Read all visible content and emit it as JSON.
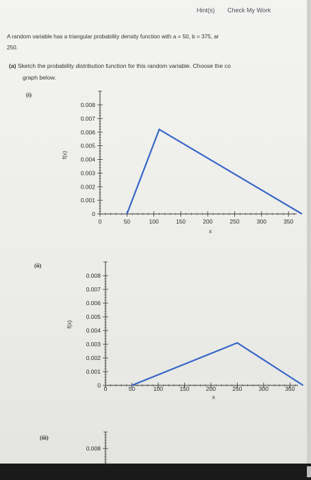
{
  "header": {
    "hint_label": "Hint(s)",
    "check_label": "Check My Work"
  },
  "problem": {
    "line1": "A random variable has a triangular probability density function with a = 50, b = 375, ar",
    "line2": "250."
  },
  "part_a": {
    "label": "(a)",
    "line1": "Sketch the probability distribution function for this random variable. Choose the co",
    "line2": "graph below."
  },
  "options": [
    {
      "label": "(i)"
    },
    {
      "label": "(ii)"
    },
    {
      "label": "(iii)"
    }
  ],
  "chart_data": [
    {
      "type": "line",
      "option": "(i)",
      "xlabel": "x",
      "ylabel": "f(x)",
      "xlim": [
        0,
        360
      ],
      "ylim": [
        0,
        0.008
      ],
      "x_ticks": [
        "0",
        "50",
        "100",
        "150",
        "200",
        "250",
        "300",
        "350"
      ],
      "y_ticks": [
        "0",
        "0.001",
        "0.002",
        "0.003",
        "0.004",
        "0.005",
        "0.006",
        "0.007",
        "0.008"
      ],
      "series": [
        {
          "x": [
            50,
            110,
            375
          ],
          "y": [
            0,
            0.0062,
            0
          ]
        }
      ],
      "line_color": "#3565c8"
    },
    {
      "type": "line",
      "option": "(ii)",
      "xlabel": "x",
      "ylabel": "f(x)",
      "xlim": [
        0,
        360
      ],
      "ylim": [
        0,
        0.008
      ],
      "x_ticks": [
        "0",
        "50",
        "100",
        "150",
        "200",
        "250",
        "300",
        "350"
      ],
      "y_ticks": [
        "0",
        "0.001",
        "0.002",
        "0.003",
        "0.004",
        "0.005",
        "0.006",
        "0.007",
        "0.008"
      ],
      "series": [
        {
          "x": [
            50,
            250,
            375
          ],
          "y": [
            0,
            0.0031,
            0
          ]
        }
      ],
      "line_color": "#3565c8"
    },
    {
      "type": "line",
      "option": "(iii)",
      "y_ticks": [
        "0.008"
      ]
    }
  ]
}
